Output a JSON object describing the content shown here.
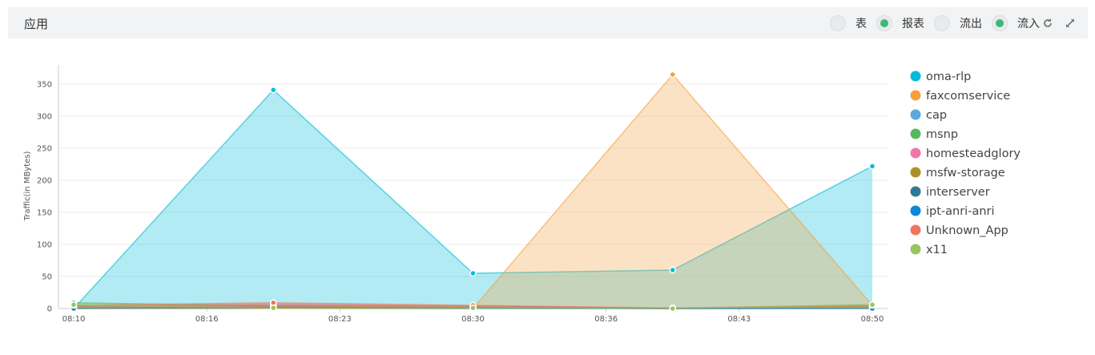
{
  "header": {
    "title": "应用",
    "toggles": [
      {
        "label": "表",
        "on": false
      },
      {
        "label": "报表",
        "on": true
      },
      {
        "label": "流出",
        "on": false
      },
      {
        "label": "流入",
        "on": true
      }
    ]
  },
  "chart_data": {
    "type": "area",
    "y_label": "Traffic(in MBytes)",
    "x": [
      "08:10",
      "08:20",
      "08:30",
      "08:40",
      "08:50"
    ],
    "xlim": [
      "08:10",
      "08:50"
    ],
    "xticks": [
      "08:10",
      "08:16",
      "08:23",
      "08:30",
      "08:36",
      "08:43",
      "08:50"
    ],
    "ylim": [
      0,
      380
    ],
    "yticks": [
      0,
      50,
      100,
      150,
      200,
      250,
      300,
      350
    ],
    "grid": true,
    "series": [
      {
        "name": "oma-rlp",
        "color": "#00bcd8",
        "values": [
          0,
          341,
          55,
          60,
          222
        ]
      },
      {
        "name": "faxcomservice",
        "color": "#f5a03a",
        "values": [
          0,
          0,
          0,
          365,
          5
        ]
      },
      {
        "name": "cap",
        "color": "#5fa7dc",
        "values": [
          2,
          2,
          1,
          0,
          0
        ]
      },
      {
        "name": "msnp",
        "color": "#55b95e",
        "values": [
          9,
          4,
          2,
          0,
          6
        ]
      },
      {
        "name": "homesteadglory",
        "color": "#ee77aa",
        "values": [
          3,
          7,
          4,
          0,
          3
        ]
      },
      {
        "name": "msfw-storage",
        "color": "#ad8f2a",
        "values": [
          4,
          5,
          3,
          0,
          4
        ]
      },
      {
        "name": "interserver",
        "color": "#2e7a94",
        "values": [
          1,
          2,
          1,
          0,
          1
        ]
      },
      {
        "name": "ipt-anri-anri",
        "color": "#0d87d6",
        "values": [
          0,
          1,
          0,
          0,
          0
        ]
      },
      {
        "name": "Unknown_App",
        "color": "#f07461",
        "values": [
          5,
          9,
          5,
          1,
          5
        ]
      },
      {
        "name": "x11",
        "color": "#98c45e",
        "values": [
          6,
          1,
          1,
          0,
          6
        ]
      }
    ]
  }
}
